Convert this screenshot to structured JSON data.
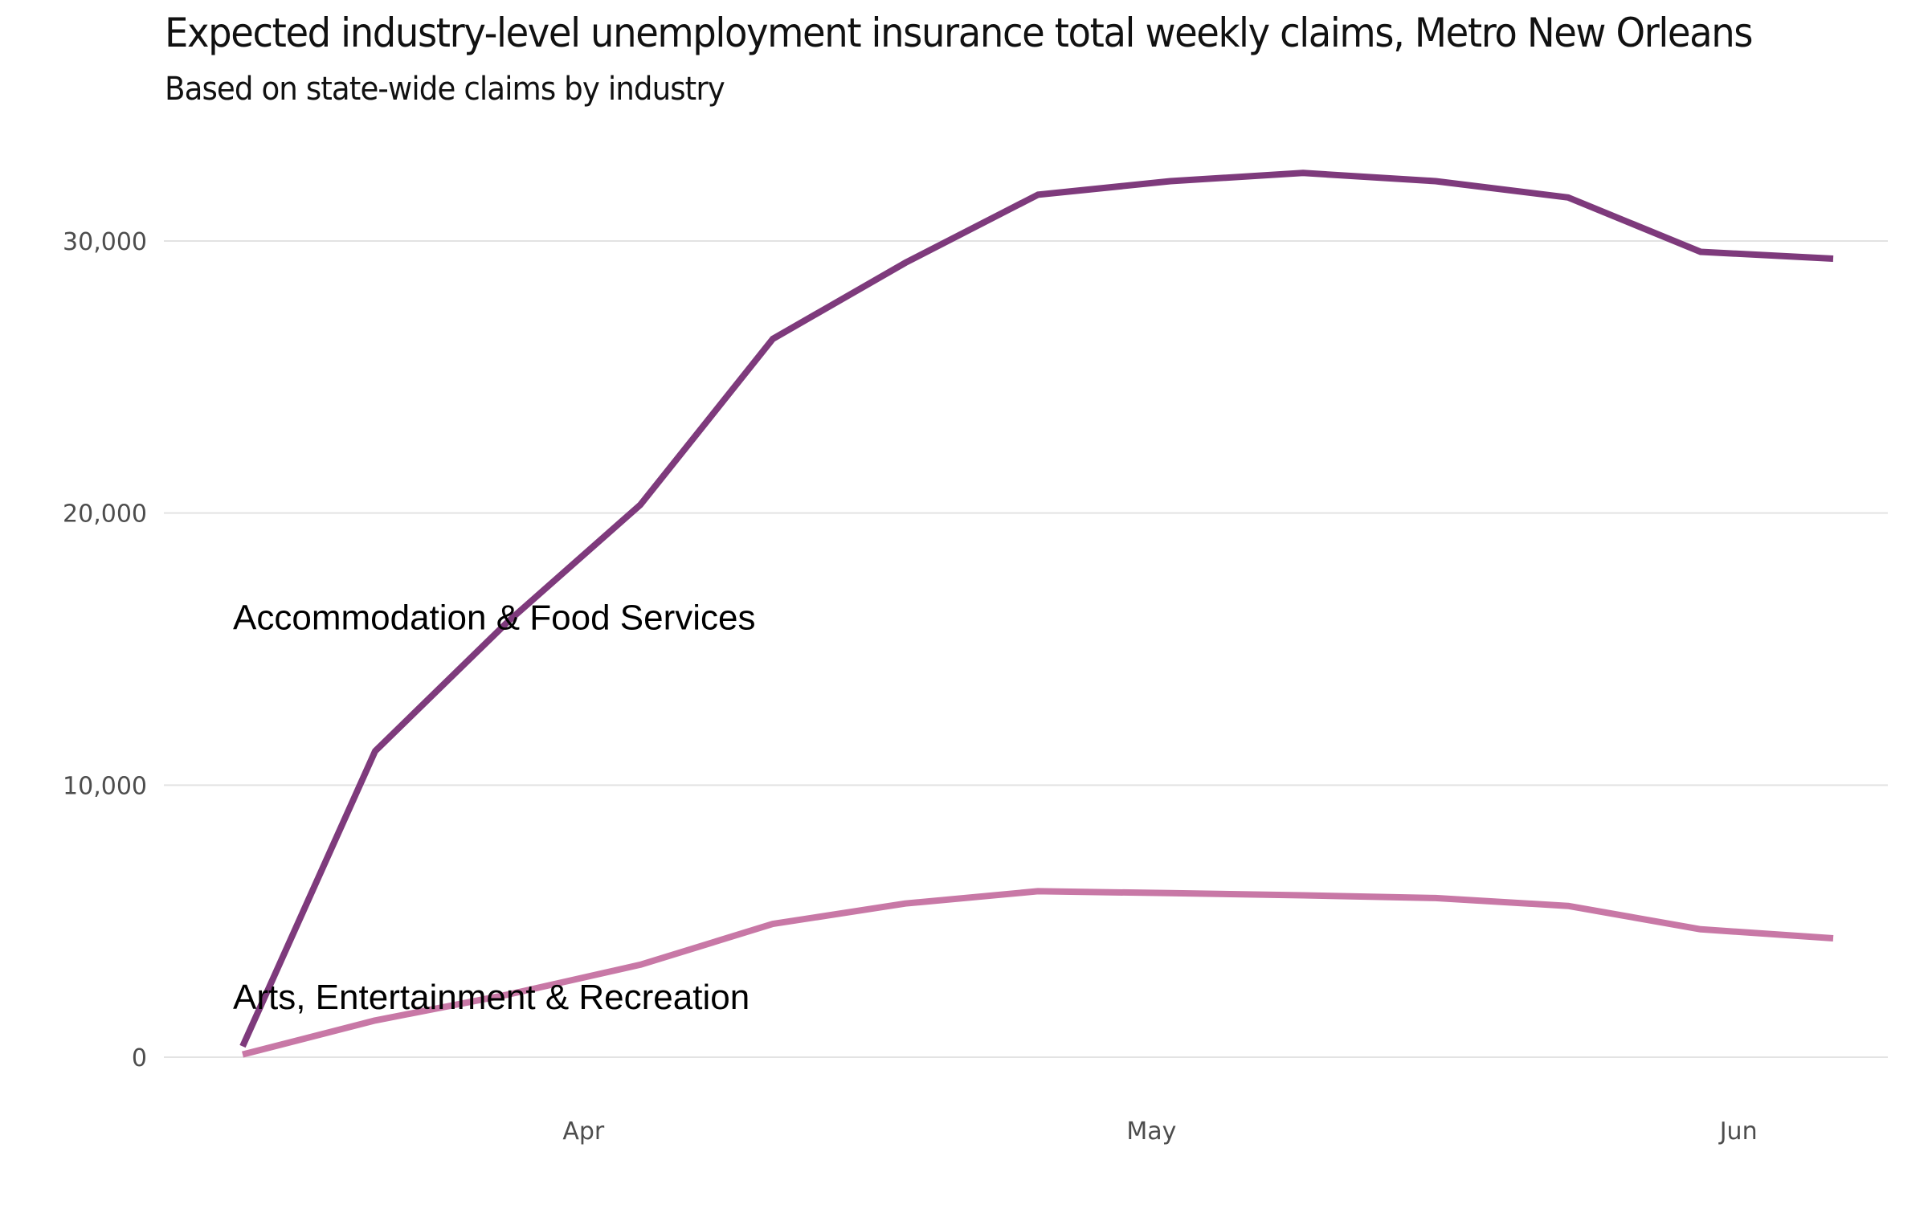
{
  "chart_data": {
    "type": "line",
    "title": "Expected industry-level unemployment insurance total weekly claims, Metro New Orleans",
    "subtitle": "Based on state-wide claims by industry",
    "xlabel": "",
    "ylabel": "",
    "x": [
      "2020-03-14",
      "2020-03-21",
      "2020-03-28",
      "2020-04-04",
      "2020-04-11",
      "2020-04-18",
      "2020-04-25",
      "2020-05-02",
      "2020-05-09",
      "2020-05-16",
      "2020-05-23",
      "2020-05-30",
      "2020-06-06"
    ],
    "x_ticks": [
      {
        "date": "2020-04-01",
        "label": "Apr"
      },
      {
        "date": "2020-05-01",
        "label": "May"
      },
      {
        "date": "2020-06-01",
        "label": "Jun"
      }
    ],
    "y_ticks": [
      {
        "value": 0,
        "label": "0"
      },
      {
        "value": 10000,
        "label": "10,000"
      },
      {
        "value": 20000,
        "label": "20,000"
      },
      {
        "value": 30000,
        "label": "30,000"
      }
    ],
    "ylim": [
      0,
      33500
    ],
    "xlim": [
      "2020-03-11",
      "2020-06-13"
    ],
    "grid": "horizontal",
    "legend": "direct-labels",
    "series": [
      {
        "name": "Accommodation & Food Services",
        "color": "#7e3a7c",
        "values": [
          400,
          11250,
          16000,
          20300,
          26400,
          29200,
          31700,
          32200,
          32500,
          32200,
          31600,
          29600,
          29350
        ],
        "label_anchor": {
          "date": "2020-03-15",
          "value": 16200
        }
      },
      {
        "name": "Arts, Entertainment & Recreation",
        "color": "#c878a6",
        "values": [
          100,
          1350,
          2300,
          3400,
          4900,
          5650,
          6100,
          6030,
          5950,
          5850,
          5560,
          4700,
          4370
        ],
        "label_anchor": {
          "date": "2020-03-15",
          "value": 2250
        }
      }
    ]
  }
}
